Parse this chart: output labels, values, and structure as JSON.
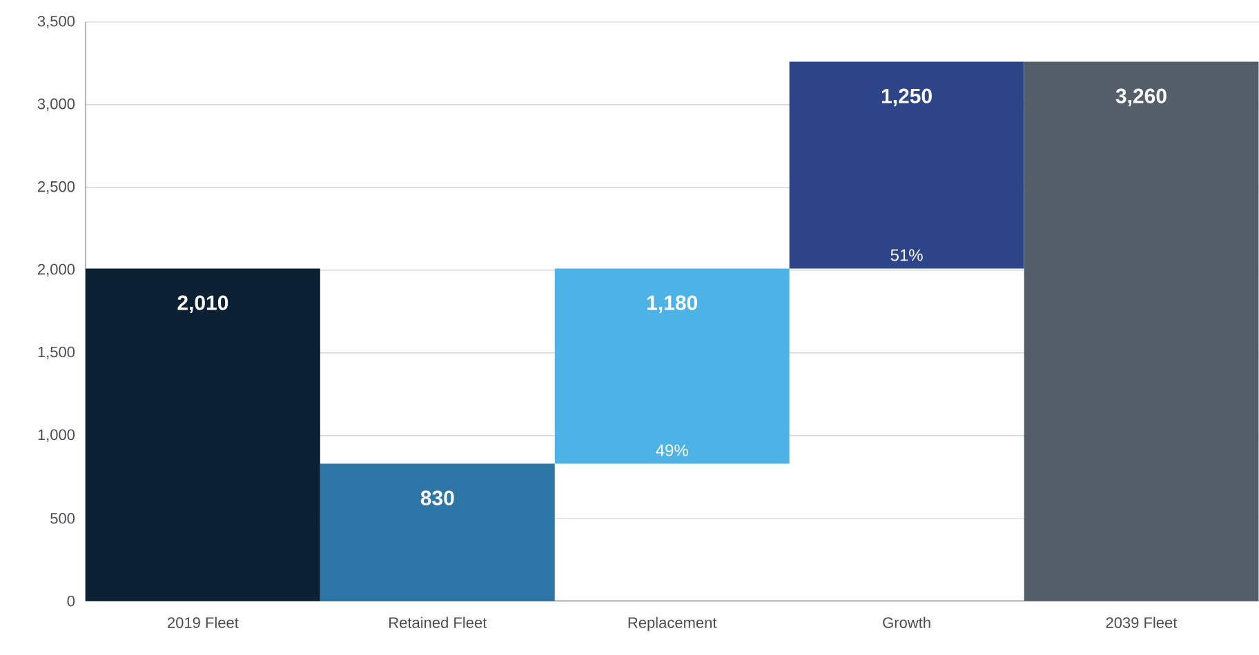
{
  "chart_data": {
    "type": "bar",
    "categories": [
      "2019 Fleet",
      "Retained Fleet",
      "Replacement",
      "Growth",
      "2039 Fleet"
    ],
    "values": [
      2010,
      830,
      1180,
      1250,
      3260
    ],
    "base": [
      0,
      0,
      830,
      2010,
      0
    ],
    "colors": [
      "#0b2033",
      "#2e75a8",
      "#4db3e6",
      "#2e4489",
      "#545e69"
    ],
    "value_labels": [
      "2,010",
      "830",
      "1,180",
      "1,250",
      "3,260"
    ],
    "annotations": [
      {
        "text": "49%",
        "x": "Replacement",
        "y": 830
      },
      {
        "text": "51%",
        "x": "Growth",
        "y": 2010
      }
    ],
    "ylim": [
      0,
      3500
    ],
    "yticks": [
      {
        "value": 0,
        "label": "0"
      },
      {
        "value": 500,
        "label": "500"
      },
      {
        "value": 1000,
        "label": "1,000"
      },
      {
        "value": 1500,
        "label": "1,500"
      },
      {
        "value": 2000,
        "label": "2,000"
      },
      {
        "value": 2500,
        "label": "2,500"
      },
      {
        "value": 3000,
        "label": "3,000"
      },
      {
        "value": 3500,
        "label": "3,500"
      }
    ],
    "grid": "y"
  }
}
